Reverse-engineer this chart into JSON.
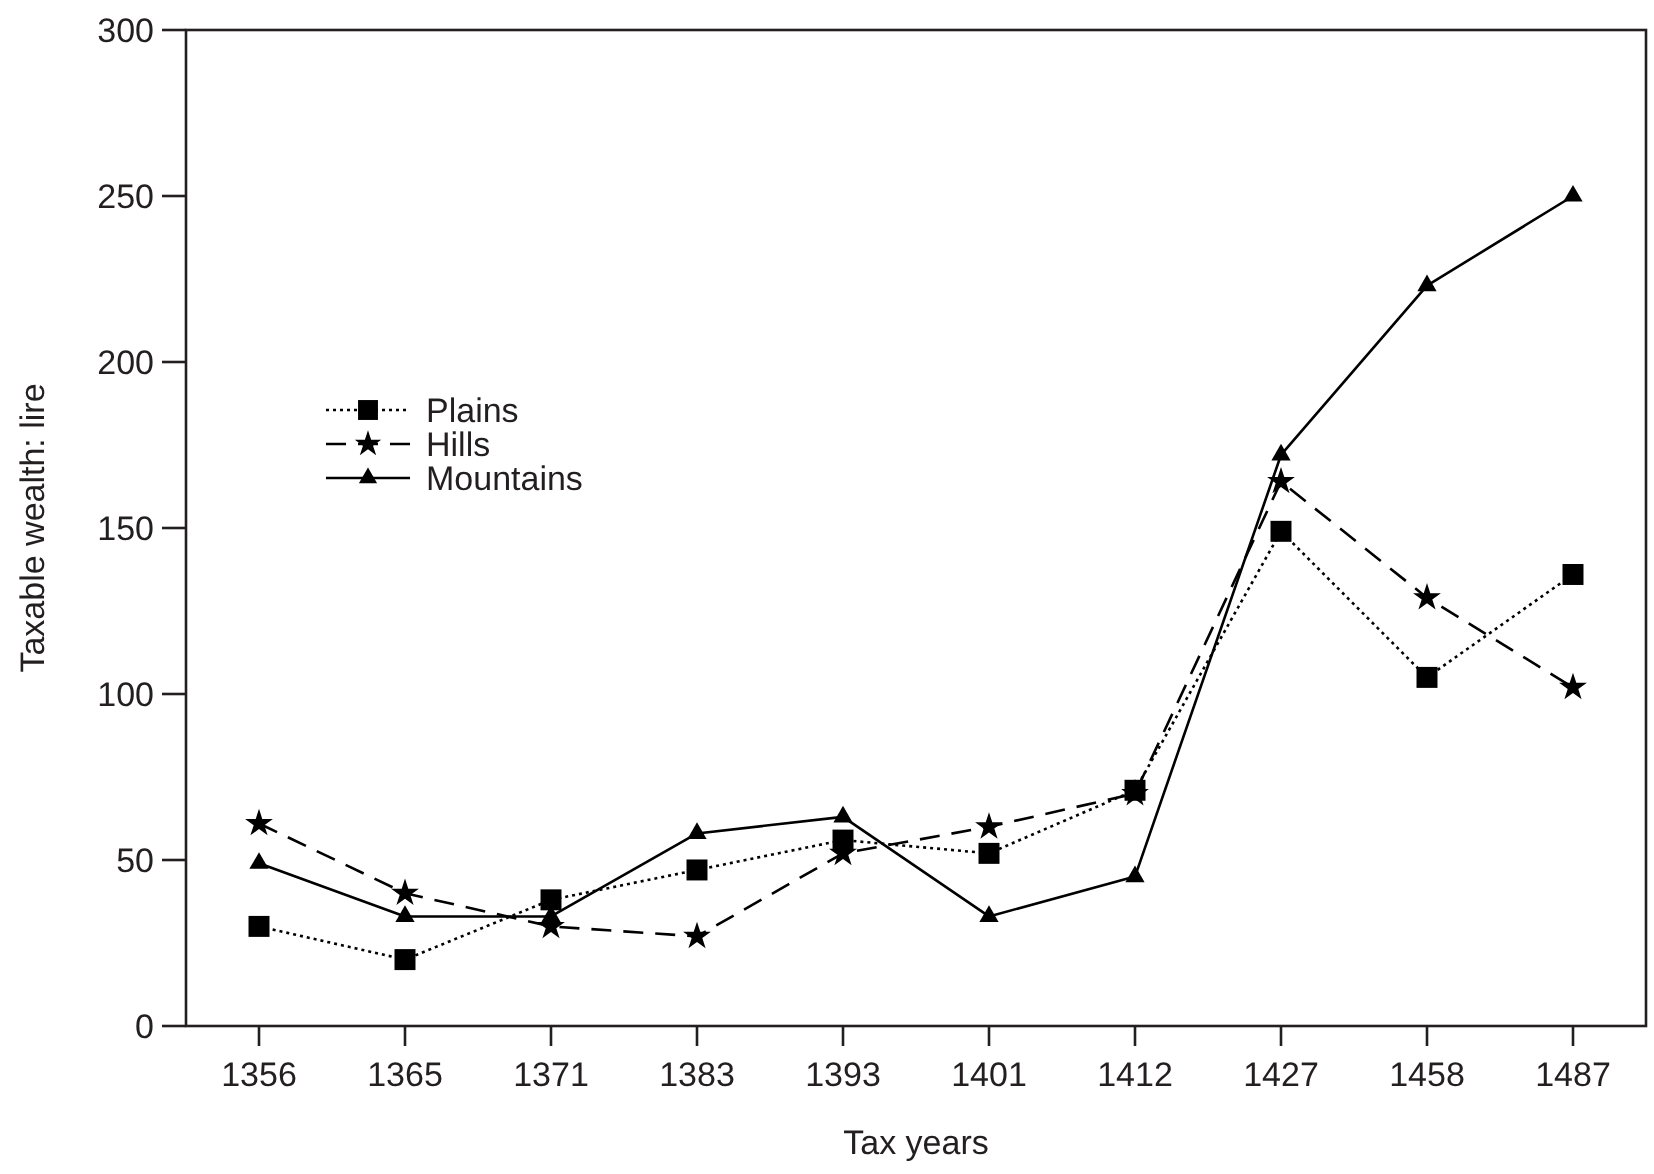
{
  "chart_data": {
    "type": "line",
    "xlabel": "Tax years",
    "ylabel": "Taxable wealth: lire",
    "categories": [
      "1356",
      "1365",
      "1371",
      "1383",
      "1393",
      "1401",
      "1412",
      "1427",
      "1458",
      "1487"
    ],
    "ylim": [
      0,
      300
    ],
    "yticks": [
      0,
      50,
      100,
      150,
      200,
      250,
      300
    ],
    "grid": false,
    "legend": "left",
    "series": [
      {
        "name": "Plains",
        "color": "#000000",
        "marker": "square",
        "line_style": "dotted",
        "values": [
          30,
          20,
          38,
          47,
          56,
          52,
          71,
          149,
          105,
          136
        ]
      },
      {
        "name": "Hills",
        "color": "#000000",
        "marker": "star",
        "line_style": "dashed",
        "values": [
          61,
          40,
          30,
          27,
          52,
          60,
          70,
          164,
          129,
          102
        ]
      },
      {
        "name": "Mountains",
        "color": "#000000",
        "marker": "triangle",
        "line_style": "solid",
        "values": [
          49,
          33,
          33,
          58,
          63,
          33,
          45,
          172,
          223,
          250
        ]
      }
    ]
  }
}
